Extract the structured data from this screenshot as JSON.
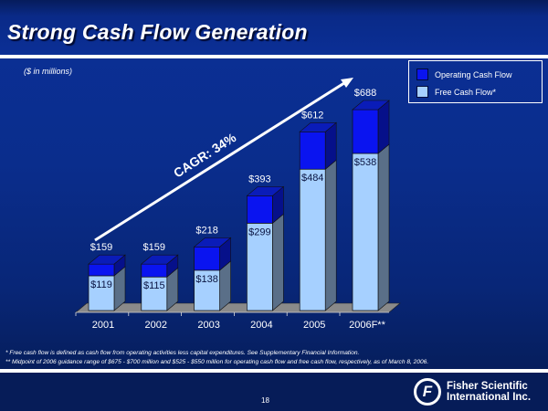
{
  "slide": {
    "title": "Strong Cash Flow Generation",
    "units": "($ in millions)",
    "page_number": "18",
    "footnotes": [
      "* Free cash flow is defined as cash flow from operating activities less capital expenditures.  See Supplementary Financial Information.",
      "** Midpoint of 2006 guidance range of $675 - $700 million and $525 - $550 million for operating cash flow and free cash flow, respectively, as of March 8, 2006."
    ],
    "logo": {
      "mark": "F",
      "line1": "Fisher Scientific",
      "line2": "International Inc."
    }
  },
  "colors": {
    "operating": "#0a14f0",
    "operating_top": "#0a1cb8",
    "operating_side": "#06108a",
    "free": "#a6d0ff",
    "free_side": "#5a6f88",
    "floor": "#8a8a8a"
  },
  "chart_data": {
    "type": "bar",
    "subtype": "stacked-3d",
    "title": "Strong Cash Flow Generation",
    "ylabel": "($ in millions)",
    "xlabel": "",
    "categories": [
      "2001",
      "2002",
      "2003",
      "2004",
      "2005",
      "2006F**"
    ],
    "series": [
      {
        "name": "Free Cash Flow*",
        "values": [
          119,
          115,
          138,
          299,
          484,
          538
        ],
        "labels": [
          "$119",
          "$115",
          "$138",
          "$299",
          "$484",
          "$538"
        ]
      },
      {
        "name": "Operating Cash Flow",
        "values": [
          159,
          159,
          218,
          393,
          612,
          688
        ],
        "labels": [
          "$159",
          "$159",
          "$218",
          "$393",
          "$612",
          "$688"
        ]
      }
    ],
    "legend": [
      "Operating Cash Flow",
      "Free Cash Flow*"
    ],
    "legend_position": "top-right",
    "annotation": "CAGR: 34%",
    "ylim": [
      0,
      688
    ],
    "grid": false
  }
}
